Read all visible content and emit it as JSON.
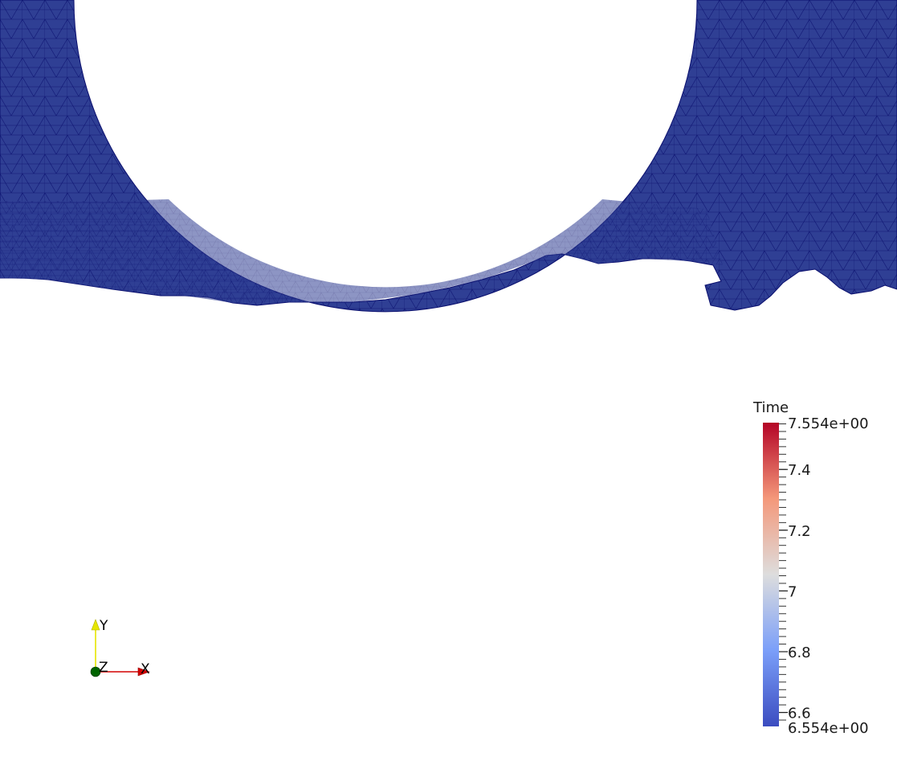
{
  "viewer": {
    "background_color": "#ffffff",
    "mesh": {
      "fill_color": "#2f3f94",
      "edge_color": "#0a0f6e"
    }
  },
  "scalar_bar": {
    "title": "Time",
    "range": [
      6.554,
      7.554
    ],
    "max_label": "7.554e+00",
    "min_label": "6.554e+00",
    "ticks": [
      {
        "value": 7.4,
        "label": "7.4"
      },
      {
        "value": 7.2,
        "label": "7.2"
      },
      {
        "value": 7.0,
        "label": "7"
      },
      {
        "value": 6.8,
        "label": "6.8"
      },
      {
        "value": 6.6,
        "label": "6.6"
      }
    ],
    "colormap": {
      "name": "cool-to-warm",
      "low_color": "#3b4cc0",
      "mid_color": "#dddddd",
      "high_color": "#b40426"
    }
  },
  "orientation_axes": {
    "x_label": "X",
    "y_label": "Y",
    "z_label": "Z",
    "x_color": "#d40000",
    "y_color": "#e6e600",
    "z_color": "#006400"
  }
}
